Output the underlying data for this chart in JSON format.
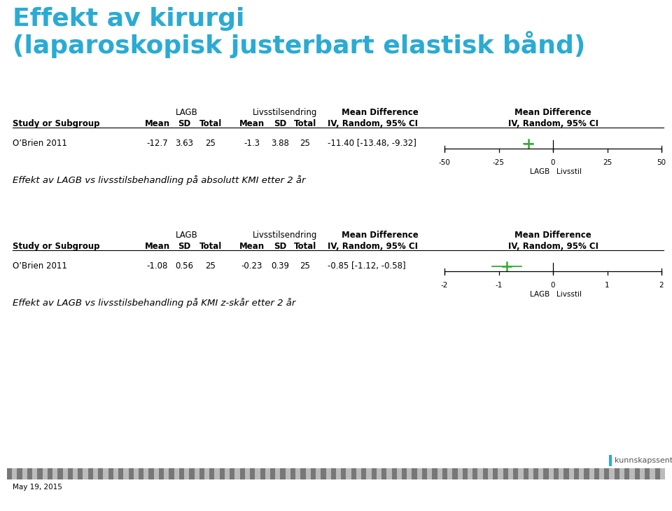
{
  "title_line1": "Effekt av kirurgi",
  "title_line2": "(laparoskopisk justerbart elastisk bånd)",
  "title_color": "#29ABD4",
  "bg_color": "#FFFFFF",
  "forest1": {
    "study": "O’Brien 2011",
    "lagb_mean": "-12.7",
    "lagb_sd": "3.63",
    "lagb_total": "25",
    "liv_mean": "-1.3",
    "liv_sd": "3.88",
    "liv_total": "25",
    "ci_text": "-11.40 [-13.48, -9.32]",
    "md": -11.4,
    "ci_low": -13.48,
    "ci_high": -9.32,
    "xmin": -50,
    "xmax": 50,
    "xticks": [
      -50,
      -25,
      0,
      25,
      50
    ],
    "xlabel_left": "LAGB",
    "xlabel_right": "Livsstil",
    "caption": "Effekt av LAGB vs livsstilsbehandling på absolutt KMI etter 2 år"
  },
  "forest2": {
    "study": "O’Brien 2011",
    "lagb_mean": "-1.08",
    "lagb_sd": "0.56",
    "lagb_total": "25",
    "liv_mean": "-0.23",
    "liv_sd": "0.39",
    "liv_total": "25",
    "ci_text": "-0.85 [-1.12, -0.58]",
    "md": -0.85,
    "ci_low": -1.12,
    "ci_high": -0.58,
    "xmin": -2,
    "xmax": 2,
    "xticks": [
      -2,
      -1,
      0,
      1,
      2
    ],
    "xlabel_left": "LAGB",
    "xlabel_right": "Livsstil",
    "caption": "Effekt av LAGB vs livsstilsbehandling på KMI z-skår etter 2 år"
  },
  "footer_text": "May 19, 2015",
  "logo_text": "kunnskapssenteret",
  "marker_color": "#33AA33",
  "title_fontsize": 26,
  "table_fontsize": 8.5,
  "caption_fontsize": 9.5
}
